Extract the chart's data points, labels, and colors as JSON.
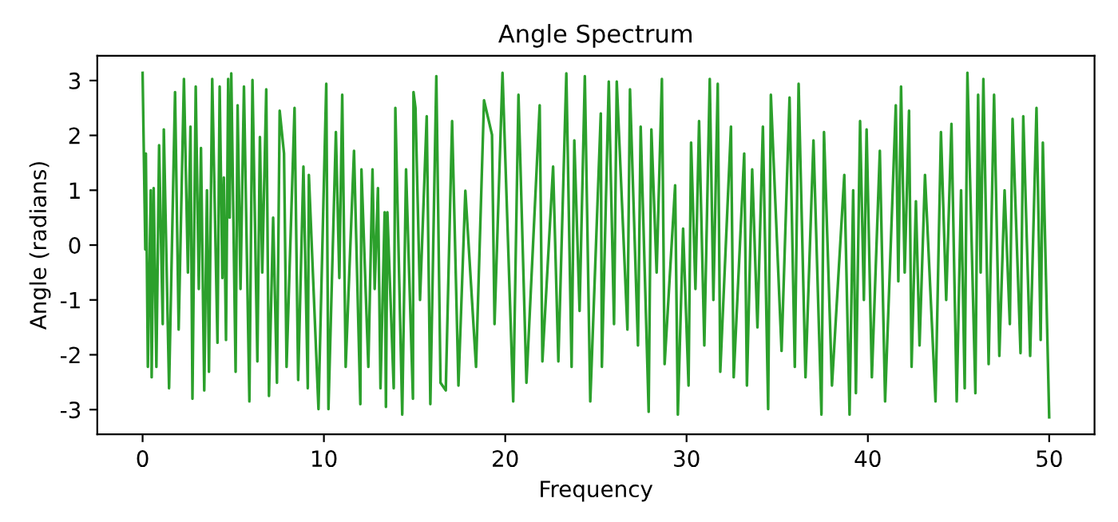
{
  "chart_data": {
    "type": "line",
    "title": "Angle Spectrum",
    "xlabel": "Frequency",
    "ylabel": "Angle (radians)",
    "series": [
      {
        "color": "#2ca02c",
        "x": [
          0,
          0.15,
          0.18,
          0.29,
          0.45,
          0.5,
          0.61,
          0.76,
          0.91,
          1.11,
          1.17,
          1.46,
          1.79,
          1.99,
          2.28,
          2.5,
          2.64,
          2.75,
          2.93,
          3.1,
          3.22,
          3.4,
          3.55,
          3.66,
          3.84,
          4.13,
          4.25,
          4.4,
          4.48,
          4.6,
          4.72,
          4.8,
          4.89,
          5.13,
          5.24,
          5.4,
          5.59,
          5.89,
          6.06,
          6.33,
          6.47,
          6.6,
          6.82,
          6.97,
          7.2,
          7.41,
          7.56,
          7.8,
          7.94,
          8.38,
          8.58,
          8.87,
          9.11,
          9.17,
          9.7,
          10.13,
          10.25,
          10.66,
          10.85,
          11.01,
          11.2,
          11.66,
          12.01,
          12.07,
          12.45,
          12.68,
          12.8,
          12.98,
          13.12,
          13.35,
          13.42,
          13.5,
          13.85,
          13.94,
          14.32,
          14.53,
          14.7,
          14.91,
          14.94,
          15.05,
          15.3,
          15.67,
          15.87,
          16.2,
          16.43,
          16.72,
          17.07,
          17.42,
          17.8,
          18.39,
          18.83,
          19.27,
          19.41,
          19.85,
          20.44,
          20.73,
          21.17,
          21.9,
          22.05,
          22.64,
          22.93,
          23.37,
          23.66,
          23.81,
          24.1,
          24.39,
          24.69,
          25.27,
          25.33,
          25.71,
          26.0,
          26.15,
          26.74,
          26.88,
          27.32,
          27.47,
          27.91,
          28.06,
          28.35,
          28.64,
          28.79,
          29.37,
          29.52,
          29.81,
          30.11,
          30.25,
          30.49,
          30.69,
          30.98,
          31.28,
          31.48,
          31.72,
          31.86,
          32.45,
          32.6,
          33.18,
          33.33,
          33.62,
          33.91,
          34.21,
          34.5,
          34.65,
          35.24,
          35.68,
          35.97,
          36.18,
          36.56,
          37.0,
          37.44,
          37.58,
          38.02,
          38.7,
          38.99,
          39.19,
          39.34,
          39.57,
          39.78,
          39.93,
          40.22,
          40.66,
          40.95,
          41.54,
          41.68,
          41.83,
          42.03,
          42.27,
          42.41,
          42.65,
          42.85,
          43.15,
          43.73,
          44.03,
          44.32,
          44.61,
          44.9,
          45.14,
          45.34,
          45.49,
          45.93,
          46.08,
          46.22,
          46.37,
          46.66,
          46.96,
          47.25,
          47.54,
          47.83,
          47.98,
          48.42,
          48.57,
          48.95,
          49.3,
          49.53,
          49.65,
          50
        ],
        "values": [
          3.14,
          -0.08,
          1.67,
          -2.22,
          1.0,
          -2.41,
          1.04,
          -2.22,
          1.82,
          -1.44,
          2.11,
          -2.61,
          2.79,
          -1.54,
          3.03,
          -0.5,
          2.16,
          -2.8,
          2.89,
          -0.8,
          1.77,
          -2.65,
          1.0,
          -2.31,
          3.03,
          -1.78,
          2.89,
          -0.6,
          1.23,
          -1.73,
          3.03,
          0.5,
          3.13,
          -2.31,
          2.55,
          -0.8,
          2.89,
          -2.85,
          3.01,
          -2.12,
          1.97,
          -0.5,
          2.84,
          -2.75,
          0.5,
          -2.51,
          2.45,
          1.67,
          -2.22,
          2.5,
          -2.46,
          1.43,
          -2.61,
          1.28,
          -2.99,
          2.94,
          -2.99,
          2.06,
          -0.6,
          2.74,
          -2.22,
          1.72,
          -2.9,
          1.38,
          -2.22,
          1.38,
          -0.8,
          1.04,
          -2.61,
          0.6,
          -2.95,
          0.6,
          -2.61,
          2.5,
          -3.09,
          1.38,
          -0.5,
          -2.8,
          2.79,
          2.5,
          -1.0,
          2.35,
          -2.9,
          3.08,
          -2.51,
          -2.65,
          2.26,
          -2.56,
          0.99,
          -2.22,
          2.64,
          2.01,
          -1.44,
          3.14,
          -2.85,
          2.74,
          -2.51,
          2.55,
          -2.12,
          1.43,
          -2.12,
          3.13,
          -2.22,
          1.91,
          -1.2,
          3.08,
          -2.85,
          2.4,
          -2.22,
          2.98,
          -1.44,
          2.98,
          -1.54,
          2.84,
          -1.83,
          2.16,
          -3.04,
          2.11,
          -0.5,
          3.03,
          -2.17,
          1.09,
          -3.09,
          0.3,
          -2.56,
          1.87,
          -0.8,
          2.26,
          -1.83,
          3.03,
          -1.0,
          2.94,
          -2.31,
          2.16,
          -2.41,
          1.67,
          -2.56,
          1.38,
          -1.5,
          2.16,
          -2.99,
          2.74,
          -1.93,
          2.69,
          -2.22,
          2.94,
          -2.41,
          1.91,
          -3.09,
          2.06,
          -2.56,
          1.28,
          -3.09,
          1.0,
          -2.7,
          2.26,
          -1.0,
          2.11,
          -2.41,
          1.72,
          -2.85,
          2.55,
          -0.66,
          2.89,
          -0.5,
          2.45,
          -2.22,
          0.8,
          -1.83,
          1.28,
          -2.85,
          2.06,
          -1.0,
          2.21,
          -2.85,
          1.0,
          -2.61,
          3.14,
          -2.7,
          2.74,
          -0.5,
          3.03,
          -2.17,
          2.74,
          -2.02,
          1.0,
          -1.44,
          2.3,
          -1.97,
          2.35,
          -2.02,
          2.5,
          -1.73,
          1.87,
          -3.14
        ]
      }
    ],
    "xlim": [
      -2.5,
      52.5
    ],
    "ylim": [
      -3.45,
      3.45
    ],
    "xticks": [
      0,
      10,
      20,
      30,
      40,
      50
    ],
    "yticks": [
      -3,
      -2,
      -1,
      0,
      1,
      2,
      3
    ],
    "grid": false
  }
}
